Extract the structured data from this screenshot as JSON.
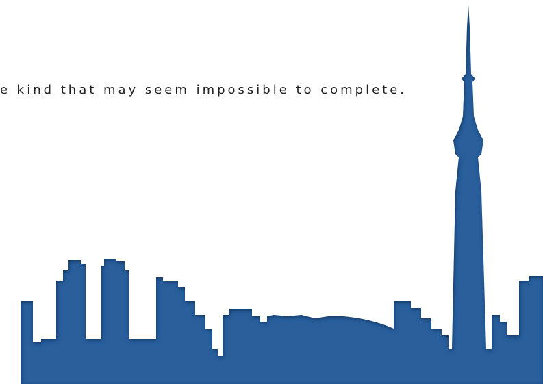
{
  "text_line": "e kind that may seem impossible to complete."
}
